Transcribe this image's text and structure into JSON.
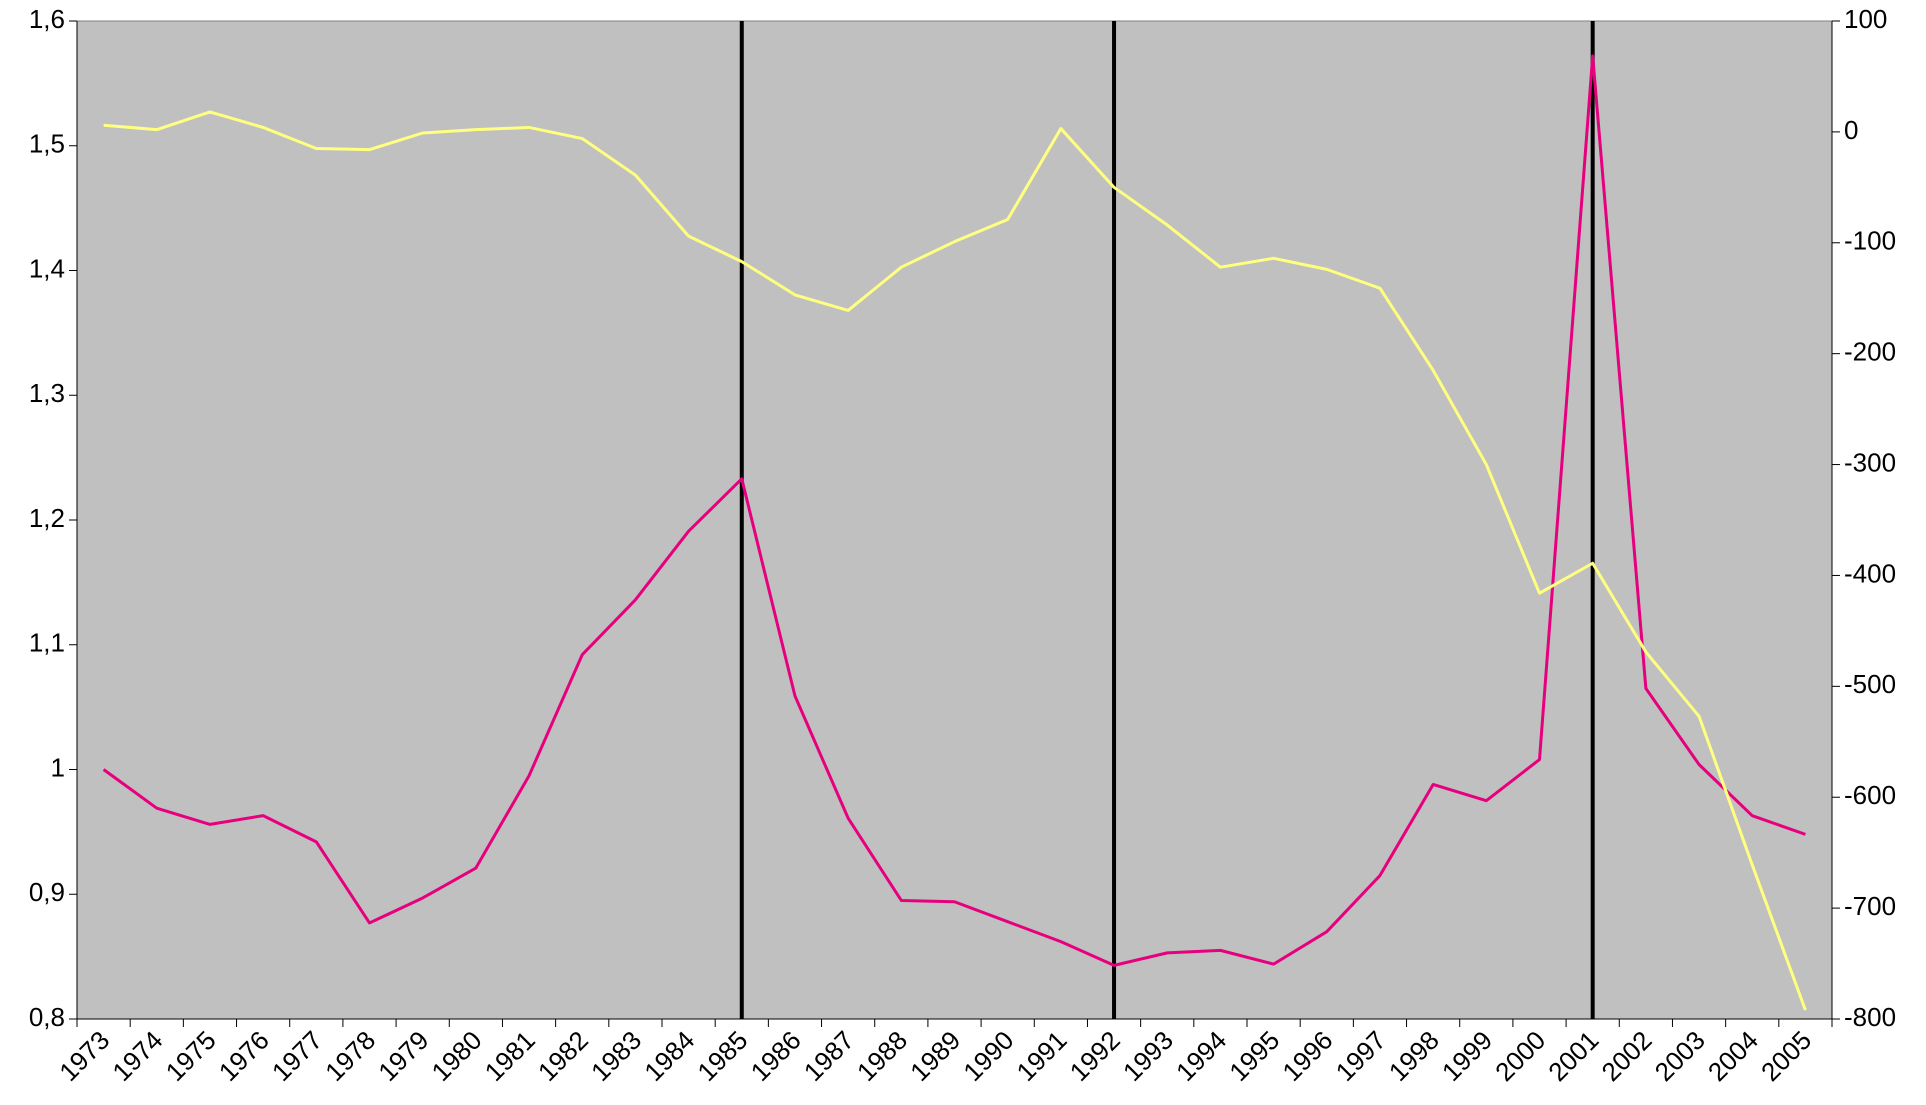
{
  "chart_data": {
    "type": "line",
    "categories": [
      "1973",
      "1974",
      "1975",
      "1976",
      "1977",
      "1978",
      "1979",
      "1980",
      "1981",
      "1982",
      "1983",
      "1984",
      "1985",
      "1986",
      "1987",
      "1988",
      "1989",
      "1990",
      "1991",
      "1992",
      "1993",
      "1994",
      "1995",
      "1996",
      "1997",
      "1998",
      "1999",
      "2000",
      "2001",
      "2002",
      "2003",
      "2004",
      "2005"
    ],
    "series": [
      {
        "color": "#e6007e",
        "axis": "y",
        "values": [
          1.0,
          0.969,
          0.956,
          0.963,
          0.942,
          0.877,
          0.897,
          0.921,
          0.995,
          1.092,
          1.136,
          1.191,
          1.233,
          1.059,
          0.961,
          0.895,
          0.894,
          0.878,
          0.862,
          0.843,
          0.853,
          0.855,
          0.844,
          0.87,
          0.915,
          0.988,
          0.975,
          1.008,
          1.572,
          1.065,
          1.004,
          0.963,
          0.948
        ]
      },
      {
        "color": "#ffff80",
        "axis": "y2",
        "values": [
          6,
          2,
          18,
          4,
          -15,
          -16,
          -1,
          2,
          4,
          -6,
          -39,
          -94,
          -117,
          -147,
          -161,
          -122,
          -99,
          -79,
          3,
          -50,
          -84,
          -122,
          -114,
          -124,
          -141,
          -215,
          -300,
          -416,
          -389,
          -469,
          -527,
          -661,
          -792
        ]
      }
    ],
    "ylim": [
      0.8,
      1.6
    ],
    "yticks": [
      {
        "value": 0.8,
        "label": "0,8"
      },
      {
        "value": 0.9,
        "label": "0,9"
      },
      1,
      {
        "value": 1.1,
        "label": "1,1"
      },
      {
        "value": 1.2,
        "label": "1,2"
      },
      {
        "value": 1.3,
        "label": "1,3"
      },
      {
        "value": 1.4,
        "label": "1,4"
      },
      {
        "value": 1.5,
        "label": "1,5"
      },
      {
        "value": 1.6,
        "label": "1,6"
      }
    ],
    "y2lim": [
      -800,
      100
    ],
    "y2ticks": [
      -800,
      -700,
      -600,
      -500,
      -400,
      -300,
      -200,
      -100,
      0,
      100
    ],
    "vlines": [
      "1985",
      "1992",
      "2001"
    ],
    "background": "#c0c0c0"
  }
}
